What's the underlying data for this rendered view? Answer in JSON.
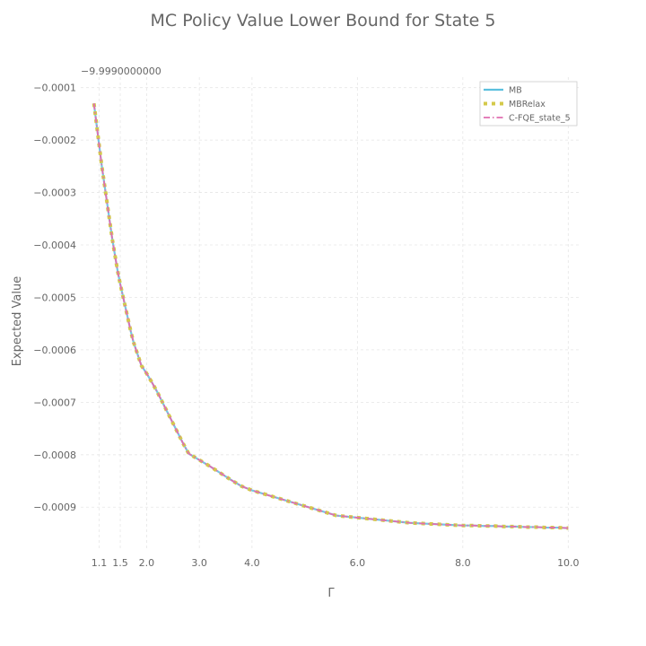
{
  "chart_data": {
    "type": "line",
    "title": "MC Policy Value Lower Bound for State 5",
    "xlabel": "Γ",
    "ylabel": "Expected Value",
    "y_offset_label": "−9.9990000000",
    "xlim": [
      0.75,
      10.25
    ],
    "ylim": [
      -0.00098,
      -8e-05
    ],
    "x_ticks": [
      1.1,
      1.5,
      2.0,
      3.0,
      4.0,
      6.0,
      8.0,
      10.0
    ],
    "x_tick_labels": [
      "1.1",
      "1.5",
      "2.0",
      "3.0",
      "4.0",
      "6.0",
      "8.0",
      "10.0"
    ],
    "y_ticks": [
      -0.0001,
      -0.0002,
      -0.0003,
      -0.0004,
      -0.0005,
      -0.0006,
      -0.0007,
      -0.0008,
      -0.0009
    ],
    "y_tick_labels": [
      "−0.0001",
      "−0.0002",
      "−0.0003",
      "−0.0004",
      "−0.0005",
      "−0.0006",
      "−0.0007",
      "−0.0008",
      "−0.0009"
    ],
    "grid": true,
    "legend_position": "top-right",
    "x": [
      1.0,
      1.05,
      1.1,
      1.15,
      1.2,
      1.25,
      1.3,
      1.35,
      1.4,
      1.45,
      1.5,
      1.6,
      1.7,
      1.75,
      1.8,
      1.85,
      1.9,
      2.0,
      2.1,
      2.2,
      2.3,
      2.4,
      2.5,
      2.6,
      2.7,
      2.8,
      3.0,
      3.2,
      3.4,
      3.6,
      3.8,
      4.0,
      4.2,
      4.4,
      4.6,
      4.8,
      5.0,
      5.2,
      5.4,
      5.6,
      6.0,
      6.2,
      6.4,
      6.6,
      6.8,
      7.0,
      7.2,
      7.4,
      7.6,
      7.8,
      8.0,
      8.2,
      8.4,
      8.6,
      8.8,
      9.0,
      9.2,
      9.4,
      9.6,
      9.8,
      10.0
    ],
    "series": [
      {
        "name": "MB",
        "color": "#5bc0de",
        "style": "solid",
        "values": [
          -0.00013,
          -0.00017,
          -0.00021,
          -0.00025,
          -0.000285,
          -0.00032,
          -0.000355,
          -0.00039,
          -0.00042,
          -0.00045,
          -0.000475,
          -0.00052,
          -0.000565,
          -0.000585,
          -0.0006,
          -0.000615,
          -0.00063,
          -0.000645,
          -0.000662,
          -0.00068,
          -0.0007,
          -0.00072,
          -0.00074,
          -0.00076,
          -0.00078,
          -0.000798,
          -0.00081,
          -0.000822,
          -0.000835,
          -0.000848,
          -0.00086,
          -0.000868,
          -0.000874,
          -0.00088,
          -0.000886,
          -0.000892,
          -0.000898,
          -0.000904,
          -0.00091,
          -0.000916,
          -0.00092,
          -0.000922,
          -0.000924,
          -0.000926,
          -0.000928,
          -0.00093,
          -0.000931,
          -0.000932,
          -0.000933,
          -0.000934,
          -0.000935,
          -0.000935,
          -0.000936,
          -0.000936,
          -0.000937,
          -0.000937,
          -0.000938,
          -0.000938,
          -0.000939,
          -0.000939,
          -0.00094
        ]
      },
      {
        "name": "MBRelax",
        "color": "#d4c94a",
        "style": "dotted",
        "values": [
          -0.00013,
          -0.00017,
          -0.00021,
          -0.00025,
          -0.000285,
          -0.00032,
          -0.000355,
          -0.00039,
          -0.00042,
          -0.00045,
          -0.000475,
          -0.00052,
          -0.000565,
          -0.000585,
          -0.0006,
          -0.000615,
          -0.00063,
          -0.000645,
          -0.000662,
          -0.00068,
          -0.0007,
          -0.00072,
          -0.00074,
          -0.00076,
          -0.00078,
          -0.000798,
          -0.00081,
          -0.000822,
          -0.000835,
          -0.000848,
          -0.00086,
          -0.000868,
          -0.000874,
          -0.00088,
          -0.000886,
          -0.000892,
          -0.000898,
          -0.000904,
          -0.00091,
          -0.000916,
          -0.00092,
          -0.000922,
          -0.000924,
          -0.000926,
          -0.000928,
          -0.00093,
          -0.000931,
          -0.000932,
          -0.000933,
          -0.000934,
          -0.000935,
          -0.000935,
          -0.000936,
          -0.000936,
          -0.000937,
          -0.000937,
          -0.000938,
          -0.000938,
          -0.000939,
          -0.000939,
          -0.00094
        ]
      },
      {
        "name": "C-FQE_state_5",
        "color": "#e06fb0",
        "style": "dashdot",
        "values": [
          -0.00013,
          -0.00017,
          -0.00021,
          -0.00025,
          -0.000285,
          -0.00032,
          -0.000355,
          -0.00039,
          -0.00042,
          -0.00045,
          -0.000475,
          -0.00052,
          -0.000565,
          -0.000585,
          -0.0006,
          -0.000615,
          -0.00063,
          -0.000645,
          -0.000662,
          -0.00068,
          -0.0007,
          -0.00072,
          -0.00074,
          -0.00076,
          -0.00078,
          -0.000798,
          -0.00081,
          -0.000822,
          -0.000835,
          -0.000848,
          -0.00086,
          -0.000868,
          -0.000874,
          -0.00088,
          -0.000886,
          -0.000892,
          -0.000898,
          -0.000904,
          -0.00091,
          -0.000916,
          -0.00092,
          -0.000922,
          -0.000924,
          -0.000926,
          -0.000928,
          -0.00093,
          -0.000931,
          -0.000932,
          -0.000933,
          -0.000934,
          -0.000935,
          -0.000935,
          -0.000936,
          -0.000936,
          -0.000937,
          -0.000937,
          -0.000938,
          -0.000938,
          -0.000939,
          -0.000939,
          -0.00094
        ]
      }
    ]
  }
}
